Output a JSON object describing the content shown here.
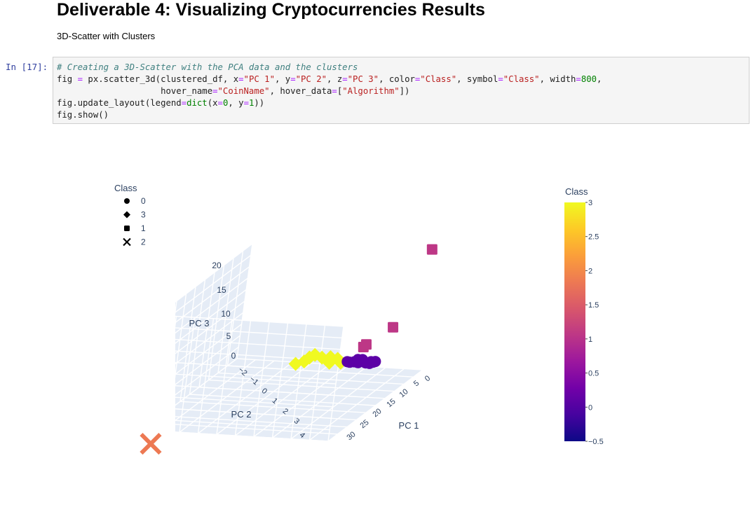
{
  "notebook": {
    "heading": "Deliverable 4: Visualizing Cryptocurrencies Results",
    "subheading": "3D-Scatter with Clusters",
    "prompt": "In [17]:",
    "code": {
      "l1_comment": "# Creating a 3D-Scatter with the PCA data and the clusters",
      "l2_a": "fig ",
      "l2_eq": "=",
      "l2_b": " px.scatter_3d(clustered_df, x",
      "l2_eq2": "=",
      "l2_s1": "\"PC 1\"",
      "l2_c": ", y",
      "l2_eq3": "=",
      "l2_s2": "\"PC 2\"",
      "l2_d": ", z",
      "l2_eq4": "=",
      "l2_s3": "\"PC 3\"",
      "l2_e": ", color",
      "l2_eq5": "=",
      "l2_s4": "\"Class\"",
      "l2_f": ", symbol",
      "l2_eq6": "=",
      "l2_s5": "\"Class\"",
      "l2_g": ", width",
      "l2_eq7": "=",
      "l2_n1": "800",
      "l2_h": ",",
      "l3_a": "                    hover_name",
      "l3_eq": "=",
      "l3_s1": "\"CoinName\"",
      "l3_b": ", hover_data",
      "l3_eq2": "=",
      "l3_c": "[",
      "l3_s2": "\"Algorithm\"",
      "l3_d": "])",
      "l4_a": "fig.update_layout(legend",
      "l4_eq": "=",
      "l4_bi": "dict",
      "l4_b": "(x",
      "l4_eq2": "=",
      "l4_n1": "0",
      "l4_c": ", y",
      "l4_eq3": "=",
      "l4_n2": "1",
      "l4_d": "))",
      "l5": "fig.show()"
    }
  },
  "chart_data": {
    "type": "scatter",
    "dims": 3,
    "legend": {
      "title": "Class",
      "placement": "top-left",
      "entries": [
        {
          "label": "0",
          "symbol": "circle"
        },
        {
          "label": "3",
          "symbol": "diamond"
        },
        {
          "label": "1",
          "symbol": "square"
        },
        {
          "label": "2",
          "symbol": "x"
        }
      ]
    },
    "colorbar": {
      "title": "Class",
      "ticks": [
        "3",
        "2.5",
        "2",
        "1.5",
        "1",
        "0.5",
        "0",
        "−0.5"
      ],
      "range": [
        -0.5,
        3
      ],
      "colorscale": [
        "#0d0887",
        "#46039f",
        "#7201a8",
        "#9c179e",
        "#bd3786",
        "#d8576b",
        "#ed7953",
        "#fb9f3a",
        "#fdca26",
        "#f0f921"
      ]
    },
    "axes": {
      "x": {
        "label": "PC 1",
        "ticks": [
          "30",
          "25",
          "20",
          "15",
          "10",
          "5",
          "0"
        ]
      },
      "y": {
        "label": "PC 2",
        "ticks": [
          "−2",
          "−1",
          "0",
          "1",
          "2",
          "3",
          "4"
        ]
      },
      "z": {
        "label": "PC 3",
        "ticks": [
          "0",
          "5",
          "10",
          "15",
          "20"
        ]
      }
    },
    "series": [
      {
        "name": "0",
        "color": "#5c01a6",
        "symbol": "circle",
        "points": [
          [
            6.1,
            -0.1,
            3.5
          ],
          [
            5.6,
            -0.4,
            3.2
          ],
          [
            5.2,
            -0.1,
            3.0
          ],
          [
            4.7,
            -0.2,
            2.9
          ],
          [
            4.2,
            -0.3,
            2.7
          ],
          [
            4.0,
            -0.5,
            2.5
          ],
          [
            3.7,
            -0.6,
            2.3
          ],
          [
            3.2,
            -0.6,
            2.4
          ],
          [
            2.8,
            -0.7,
            2.3
          ],
          [
            2.5,
            -0.6,
            2.0
          ],
          [
            3.0,
            -0.3,
            2.6
          ],
          [
            3.5,
            -0.2,
            2.8
          ]
        ]
      },
      {
        "name": "3",
        "color": "#f0f921",
        "symbol": "diamond",
        "points": [
          [
            7.5,
            0.6,
            4.6
          ],
          [
            7.9,
            0.8,
            5.2
          ],
          [
            8.6,
            0.9,
            5.0
          ],
          [
            9.2,
            1.0,
            4.5
          ],
          [
            9.9,
            1.2,
            4.3
          ],
          [
            6.7,
            0.4,
            4.4
          ],
          [
            6.3,
            0.2,
            4.0
          ],
          [
            8.0,
            0.3,
            4.0
          ],
          [
            7.3,
            0.0,
            3.8
          ]
        ]
      },
      {
        "name": "1",
        "color": "#bd3786",
        "symbol": "square",
        "points": [
          [
            -2.0,
            -1.6,
            21.0
          ],
          [
            2.6,
            -1.1,
            8.6
          ],
          [
            2.2,
            -0.2,
            4.5
          ],
          [
            1.3,
            -0.2,
            4.6
          ]
        ]
      },
      {
        "name": "2",
        "color": "#ed7953",
        "symbol": "x",
        "points": [
          [
            33.0,
            3.4,
            -1.0
          ]
        ]
      }
    ]
  }
}
